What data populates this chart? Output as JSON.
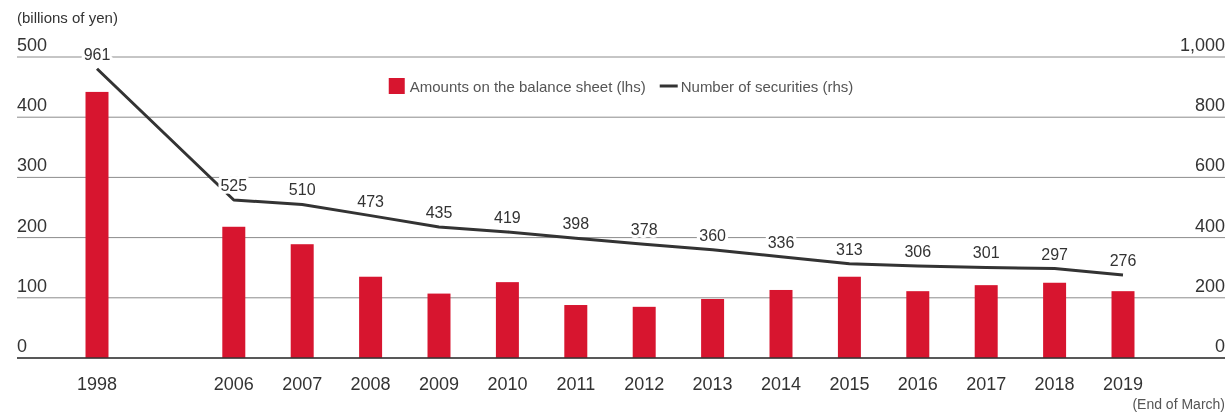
{
  "chart_data": {
    "type": "bar",
    "ylabel": "(billions of yen)",
    "categories": [
      "1998",
      null,
      "2006",
      "2007",
      "2008",
      "2009",
      "2010",
      "2011",
      "2012",
      "2013",
      "2014",
      "2015",
      "2016",
      "2017",
      "2018",
      "2019"
    ],
    "series": [
      {
        "name": "Amounts on the balance sheet (lhs)",
        "color": "#d7152f",
        "values": [
          442,
          null,
          218,
          189,
          135,
          107,
          126,
          88,
          85,
          98,
          113,
          135,
          111,
          121,
          125,
          111
        ]
      },
      {
        "name": "Number of securities (rhs)",
        "type": "line",
        "axis": "y2",
        "color": "#333333",
        "values": [
          961,
          null,
          525,
          510,
          473,
          435,
          419,
          398,
          378,
          360,
          336,
          313,
          306,
          301,
          297,
          276
        ],
        "value_labels": [
          "961",
          null,
          "525",
          "510",
          "473",
          "435",
          "419",
          "398",
          "378",
          "360",
          "336",
          "313",
          "306",
          "301",
          "297",
          "276"
        ]
      }
    ],
    "ylim": [
      0,
      500
    ],
    "yticks": [
      0,
      100,
      200,
      300,
      400,
      500
    ],
    "y2lim": [
      0,
      1000
    ],
    "y2ticks": [
      0,
      200,
      400,
      600,
      800,
      {
        "value": 1000,
        "label": "1,000"
      }
    ],
    "grid": "y",
    "legend": "top",
    "annotations": [
      "(End of March)"
    ]
  }
}
